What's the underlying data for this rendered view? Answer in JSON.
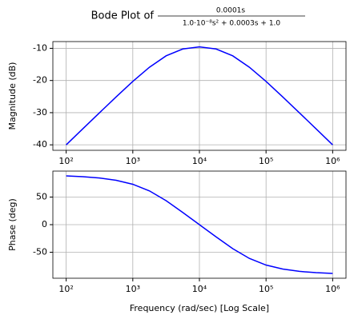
{
  "chart_data": [
    {
      "type": "line",
      "title": "Bode Plot of",
      "title_numerator": "0.0001s",
      "title_denominator": "1.0·10⁻⁸s² + 0.0003s + 1.0",
      "ylabel": "Magnitude (dB)",
      "xscale": "log",
      "grid": true,
      "color": "#0000ff",
      "x": [
        100,
        177.8,
        316.2,
        562.3,
        1000,
        1778,
        3162,
        5623,
        10000,
        17783,
        31623,
        56234,
        100000,
        177828,
        316228,
        562341,
        1000000
      ],
      "values": [
        -40.0,
        -35.01,
        -30.03,
        -25.1,
        -20.29,
        -15.87,
        -12.33,
        -10.2,
        -9.54,
        -10.2,
        -12.33,
        -15.87,
        -20.29,
        -25.1,
        -30.03,
        -35.01,
        -40.0
      ],
      "xlim": [
        63.1,
        1584893
      ],
      "ylim": [
        -41.7,
        -7.9
      ],
      "xticks": [
        {
          "value": 100,
          "label": "10²"
        },
        {
          "value": 1000,
          "label": "10³"
        },
        {
          "value": 10000,
          "label": "10⁴"
        },
        {
          "value": 100000,
          "label": "10⁵"
        },
        {
          "value": 1000000,
          "label": "10⁶"
        }
      ],
      "yticks": [
        -40,
        -30,
        -20,
        -10
      ]
    },
    {
      "type": "line",
      "ylabel": "Phase (deg)",
      "xlabel": "Frequency (rad/sec) [Log Scale]",
      "xscale": "log",
      "grid": true,
      "color": "#0000ff",
      "x": [
        100,
        177.8,
        316.2,
        562.3,
        1000,
        1778,
        3162,
        5623,
        10000,
        17783,
        31623,
        56234,
        100000,
        177828,
        316228,
        562341,
        1000000
      ],
      "values": [
        88.28,
        86.95,
        84.58,
        80.39,
        73.14,
        61.15,
        43.49,
        22.06,
        0,
        -22.06,
        -43.49,
        -61.15,
        -73.14,
        -80.39,
        -84.58,
        -86.95,
        -88.28
      ],
      "xlim": [
        63.1,
        1584893
      ],
      "ylim": [
        -97,
        97
      ],
      "xticks": [
        {
          "value": 100,
          "label": "10²"
        },
        {
          "value": 1000,
          "label": "10³"
        },
        {
          "value": 10000,
          "label": "10⁴"
        },
        {
          "value": 100000,
          "label": "10⁵"
        },
        {
          "value": 1000000,
          "label": "10⁶"
        }
      ],
      "yticks": [
        -50,
        0,
        50
      ]
    }
  ]
}
